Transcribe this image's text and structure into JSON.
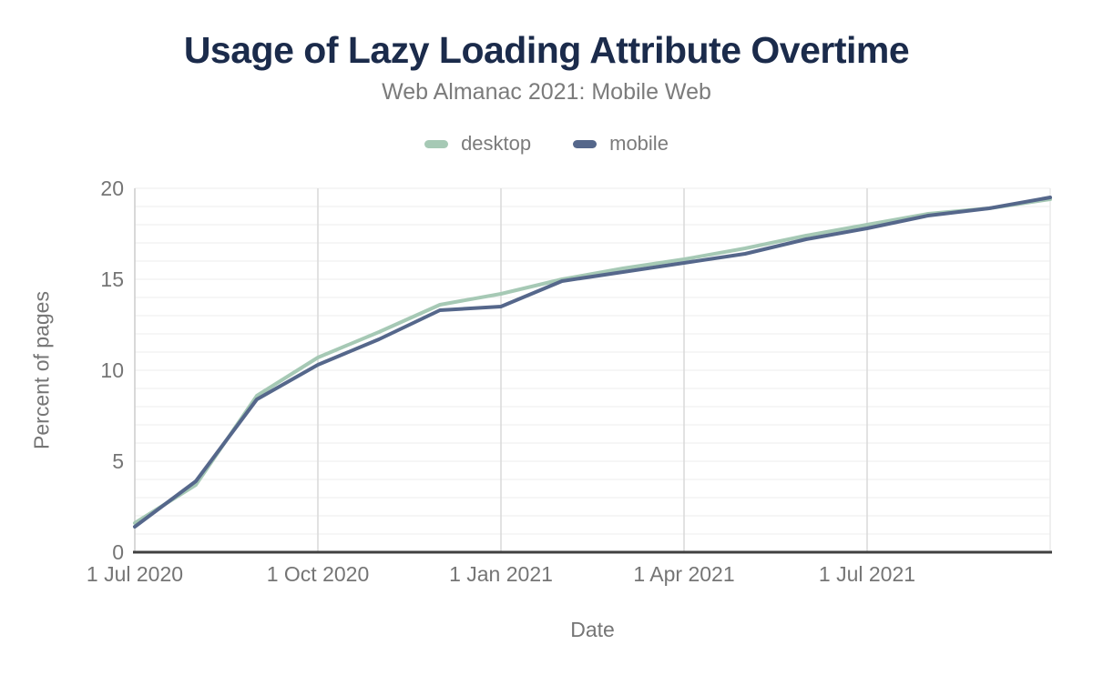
{
  "chart_data": {
    "type": "line",
    "title": "Usage of Lazy Loading Attribute Overtime",
    "subtitle": "Web Almanac 2021: Mobile Web",
    "xlabel": "Date",
    "ylabel": "Percent of pages",
    "x": [
      "1 Jul 2020",
      "1 Aug 2020",
      "1 Sep 2020",
      "1 Oct 2020",
      "1 Nov 2020",
      "1 Dec 2020",
      "1 Jan 2021",
      "1 Feb 2021",
      "1 Mar 2021",
      "1 Apr 2021",
      "1 May 2021",
      "1 Jun 2021",
      "1 Jul 2021",
      "1 Aug 2021",
      "1 Sep 2021",
      "1 Oct 2021"
    ],
    "x_tick_indices": [
      0,
      3,
      6,
      9,
      12
    ],
    "x_tick_labels": [
      "1 Jul 2020",
      "1 Oct 2020",
      "1 Jan 2021",
      "1 Apr 2021",
      "1 Jul 2021"
    ],
    "ylim": [
      0,
      20
    ],
    "y_ticks": [
      0,
      5,
      10,
      15,
      20
    ],
    "y_minor_step": 1,
    "grid": true,
    "legend_position": "top",
    "series": [
      {
        "name": "desktop",
        "color": "#a6c9b5",
        "values": [
          1.6,
          3.7,
          8.6,
          10.7,
          12.1,
          13.6,
          14.2,
          15.0,
          15.6,
          16.1,
          16.7,
          17.4,
          18.0,
          18.6,
          18.9,
          19.4
        ]
      },
      {
        "name": "mobile",
        "color": "#55678b",
        "values": [
          1.4,
          3.9,
          8.4,
          10.3,
          11.7,
          13.3,
          13.5,
          14.9,
          15.4,
          15.9,
          16.4,
          17.2,
          17.8,
          18.5,
          18.9,
          19.5
        ]
      }
    ]
  },
  "colors": {
    "title": "#1b2b4b",
    "subtitle": "#7b7b7b",
    "axis_text": "#757575",
    "grid_minor": "#ececec",
    "grid_vertical": "#d9d9d9",
    "axis_left_line": "#cccccc",
    "plot_right_border": "#eaeaea",
    "axis_bottom_line": "#404040"
  }
}
